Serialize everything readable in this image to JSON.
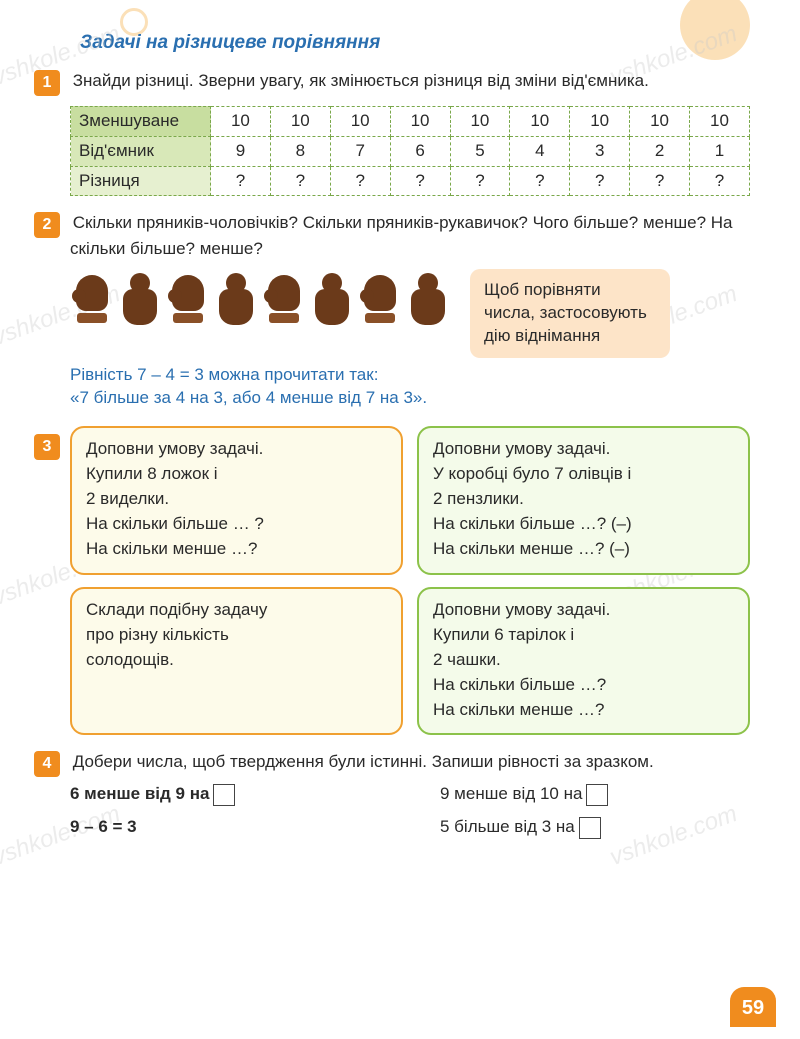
{
  "section_title": "Задачі на різницеве порівняння",
  "task1": {
    "num": "1",
    "text": "Знайди різниці. Зверни увагу, як змінюється різниця від зміни від'ємника.",
    "table": {
      "row_labels": [
        "Зменшуване",
        "Від'ємник",
        "Різниця"
      ],
      "rows": [
        [
          "10",
          "10",
          "10",
          "10",
          "10",
          "10",
          "10",
          "10",
          "10"
        ],
        [
          "9",
          "8",
          "7",
          "6",
          "5",
          "4",
          "3",
          "2",
          "1"
        ],
        [
          "?",
          "?",
          "?",
          "?",
          "?",
          "?",
          "?",
          "?",
          "?"
        ]
      ],
      "row_bg_colors": [
        "#c8dea0",
        "#d8e8b8",
        "#e6f0d0"
      ],
      "border_color": "#7aa84a"
    }
  },
  "task2": {
    "num": "2",
    "text": "Скільки пряників-чоловічків? Скільки пряників-рукавичок? Чого більше? менше? На скільки більше? менше?",
    "items": [
      "mitten",
      "man",
      "mitten",
      "man",
      "mitten",
      "man",
      "mitten",
      "man"
    ],
    "rule_box": "Щоб порівняти числа, засто­совують дію віднімання",
    "rule_bg": "#fde4c8",
    "blue_line1": "Рівність 7 – 4 = 3 можна прочитати так:",
    "blue_line2": "«7 більше за 4 на 3, або 4 менше від 7 на 3».",
    "blue_color": "#2a6fb0"
  },
  "task3": {
    "num": "3",
    "boxes": [
      {
        "color": "orange",
        "border": "#f0a030",
        "bg": "#fdfbea",
        "lines": [
          "Доповни умову задачі.",
          "Купили 8 ложок і",
          "2 виделки.",
          "На скільки більше … ?",
          "На скільки менше …?"
        ]
      },
      {
        "color": "green",
        "border": "#8cc24a",
        "bg": "#f4fbea",
        "lines": [
          "Доповни умову задачі.",
          "У коробці було 7 олівців і",
          "2 пензлики.",
          "На скільки більше …? (–)",
          "На скільки менше …? (–)"
        ]
      },
      {
        "color": "orange",
        "border": "#f0a030",
        "bg": "#fdfbea",
        "lines": [
          "Склади подібну задачу",
          "про різну кількість",
          "солодощів."
        ]
      },
      {
        "color": "green",
        "border": "#8cc24a",
        "bg": "#f4fbea",
        "lines": [
          "Доповни умову задачі.",
          "Купили 6 тарілок і",
          "2 чашки.",
          "На скільки більше …?",
          "На скільки менше …?"
        ]
      }
    ]
  },
  "task4": {
    "num": "4",
    "text": "Добери числа, щоб твердження були істинні. Запиши рівності за зразком.",
    "left": {
      "line1": "6 менше від 9 на",
      "eq": "9 – 6 = 3"
    },
    "right": {
      "line1": "9 менше від 10 на",
      "line2": "5 більше від 3 на"
    }
  },
  "page_number": "59",
  "accent_color": "#f08c1e",
  "watermark_text": "vshkole.com"
}
